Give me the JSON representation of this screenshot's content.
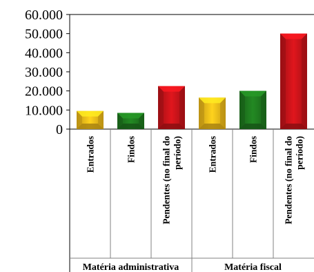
{
  "chart_data": {
    "type": "bar",
    "y_ticks": [
      "0",
      "10.000",
      "20.000",
      "30.000",
      "40.000",
      "50.000",
      "60.000"
    ],
    "ylim": [
      0,
      60000
    ],
    "grid": false,
    "groups": [
      {
        "label": "Matéria administrativa",
        "categories": [
          {
            "label": "Entrados",
            "value": 9500,
            "color": "#f2bc1a"
          },
          {
            "label": "Findos",
            "value": 8500,
            "color": "#1f7a1f"
          },
          {
            "label": "Pendentes (no final do período)",
            "label_lines": [
              "Pendentes (no final do",
              "período)"
            ],
            "value": 22500,
            "color": "#c8141a"
          }
        ]
      },
      {
        "label": "Matéria fiscal",
        "categories": [
          {
            "label": "Entrados",
            "value": 16500,
            "color": "#f2bc1a"
          },
          {
            "label": "Findos",
            "value": 20000,
            "color": "#1f7a1f"
          },
          {
            "label": "Pendentes (no final do período)",
            "label_lines": [
              "Pendentes (no final do",
              "período)"
            ],
            "value": 50000,
            "color": "#c8141a"
          }
        ]
      }
    ]
  }
}
